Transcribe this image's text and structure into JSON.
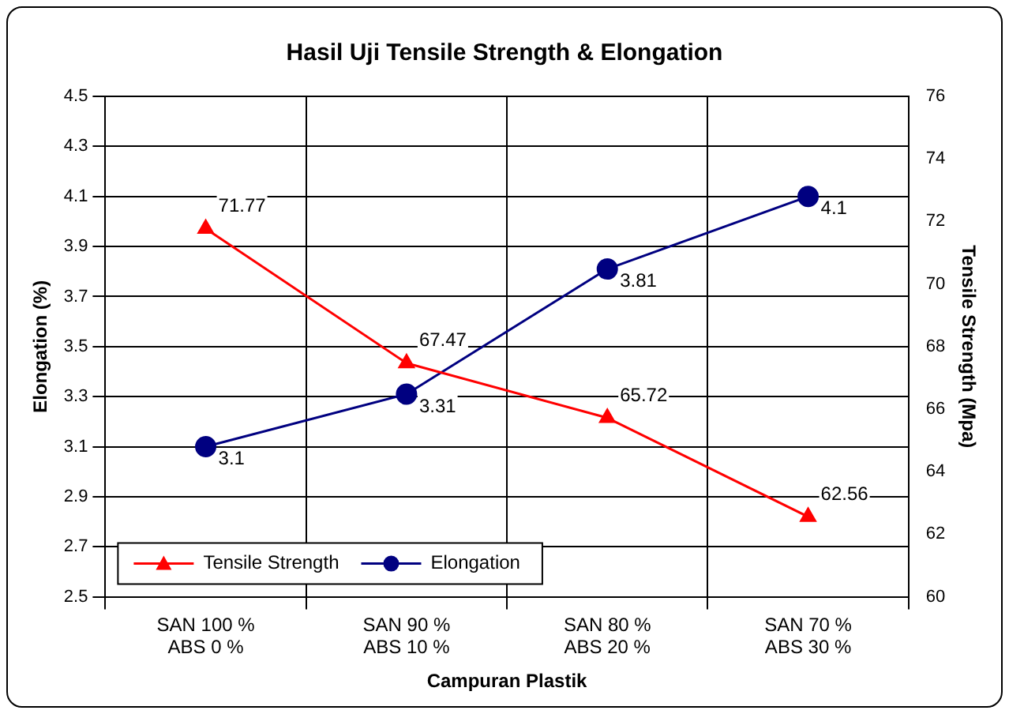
{
  "chart_data": {
    "type": "line",
    "title": "Hasil Uji Tensile Strength & Elongation",
    "xlabel": "Campuran Plastik",
    "ylabel": "Elongation (%)",
    "y2label": "Tensile Strength (Mpa)",
    "categories": [
      "SAN 100 %\nABS 0 %",
      "SAN 90 %\nABS 10 %",
      "SAN 80 %\nABS 20 %",
      "SAN 70 %\nABS 30 %"
    ],
    "series": [
      {
        "name": "Tensile Strength",
        "color": "#ff0000",
        "values": [
          71.77,
          67.47,
          65.72,
          62.56
        ],
        "axis": "y2",
        "marker": "triangle"
      },
      {
        "name": "Elongation",
        "color": "#000080",
        "values": [
          3.1,
          3.31,
          3.81,
          4.1
        ],
        "marker": "circle"
      }
    ],
    "ylim": [
      2.5,
      4.5
    ],
    "yticks": [
      2.5,
      2.7,
      2.9,
      3.1,
      3.3,
      3.5,
      3.7,
      3.9,
      4.1,
      4.3,
      4.5
    ],
    "y2lim": [
      60,
      76
    ],
    "y2ticks": [
      60,
      62,
      64,
      66,
      68,
      70,
      72,
      74,
      76
    ],
    "grid": true,
    "legend": "bottom left",
    "data_labels": true,
    "line_style": "solid"
  }
}
